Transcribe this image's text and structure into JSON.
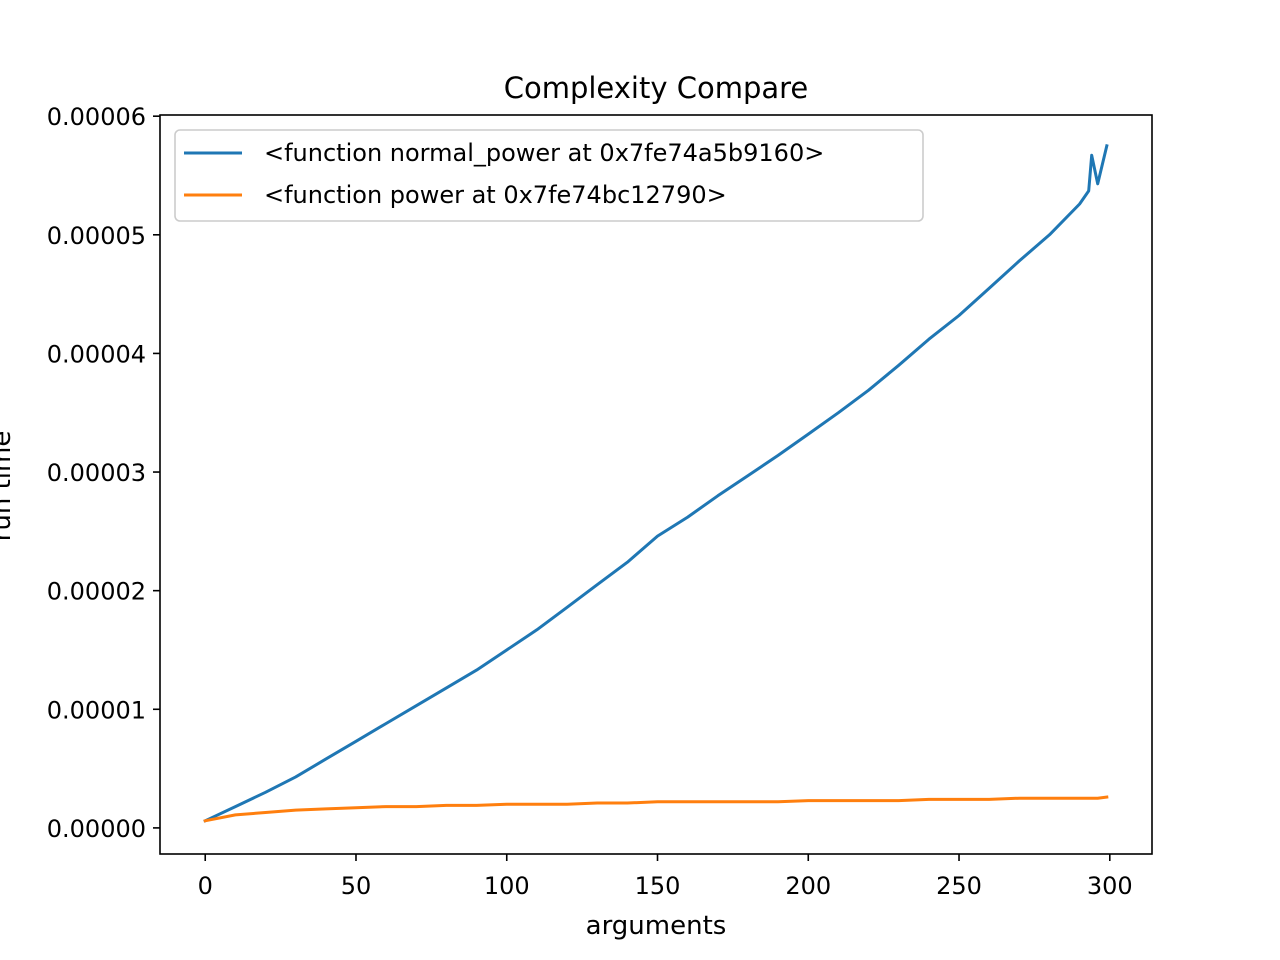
{
  "chart_data": {
    "type": "line",
    "title": "Complexity Compare",
    "xlabel": "arguments",
    "ylabel": "run time",
    "xlim": [
      -15,
      314
    ],
    "ylim": [
      -2.2e-06,
      6.01e-05
    ],
    "xticks": [
      0,
      50,
      100,
      150,
      200,
      250,
      300
    ],
    "xtick_labels": [
      "0",
      "50",
      "100",
      "150",
      "200",
      "250",
      "300"
    ],
    "yticks": [
      0,
      1e-05,
      2e-05,
      3e-05,
      4e-05,
      5e-05,
      6e-05
    ],
    "ytick_labels": [
      "0.00000",
      "0.00001",
      "0.00002",
      "0.00003",
      "0.00004",
      "0.00005",
      "0.00006"
    ],
    "grid": false,
    "legend_position": "top-left",
    "x": [
      0,
      10,
      20,
      30,
      40,
      50,
      60,
      70,
      80,
      90,
      100,
      110,
      120,
      130,
      140,
      150,
      160,
      170,
      180,
      190,
      200,
      210,
      220,
      230,
      240,
      250,
      260,
      270,
      280,
      290,
      293,
      294,
      296,
      299
    ],
    "series": [
      {
        "name": "<function normal_power at 0x7fe74a5b9160>",
        "color": "#1f77b4",
        "values": [
          6e-07,
          1.8e-06,
          3e-06,
          4.3e-06,
          5.8e-06,
          7.3e-06,
          8.8e-06,
          1.03e-05,
          1.18e-05,
          1.33e-05,
          1.5e-05,
          1.67e-05,
          1.86e-05,
          2.05e-05,
          2.24e-05,
          2.46e-05,
          2.62e-05,
          2.8e-05,
          2.97e-05,
          3.14e-05,
          3.32e-05,
          3.5e-05,
          3.69e-05,
          3.9e-05,
          4.12e-05,
          4.32e-05,
          4.55e-05,
          4.78e-05,
          5e-05,
          5.26e-05,
          5.37e-05,
          5.67e-05,
          5.43e-05,
          5.75e-05
        ]
      },
      {
        "name": "<function power at 0x7fe74bc12790>",
        "color": "#ff7f0e",
        "values": [
          6e-07,
          1.1e-06,
          1.3e-06,
          1.5e-06,
          1.6e-06,
          1.7e-06,
          1.8e-06,
          1.8e-06,
          1.9e-06,
          1.9e-06,
          2e-06,
          2e-06,
          2e-06,
          2.1e-06,
          2.1e-06,
          2.2e-06,
          2.2e-06,
          2.2e-06,
          2.2e-06,
          2.2e-06,
          2.3e-06,
          2.3e-06,
          2.3e-06,
          2.3e-06,
          2.4e-06,
          2.4e-06,
          2.4e-06,
          2.5e-06,
          2.5e-06,
          2.5e-06,
          2.5e-06,
          2.5e-06,
          2.5e-06,
          2.6e-06
        ]
      }
    ]
  }
}
